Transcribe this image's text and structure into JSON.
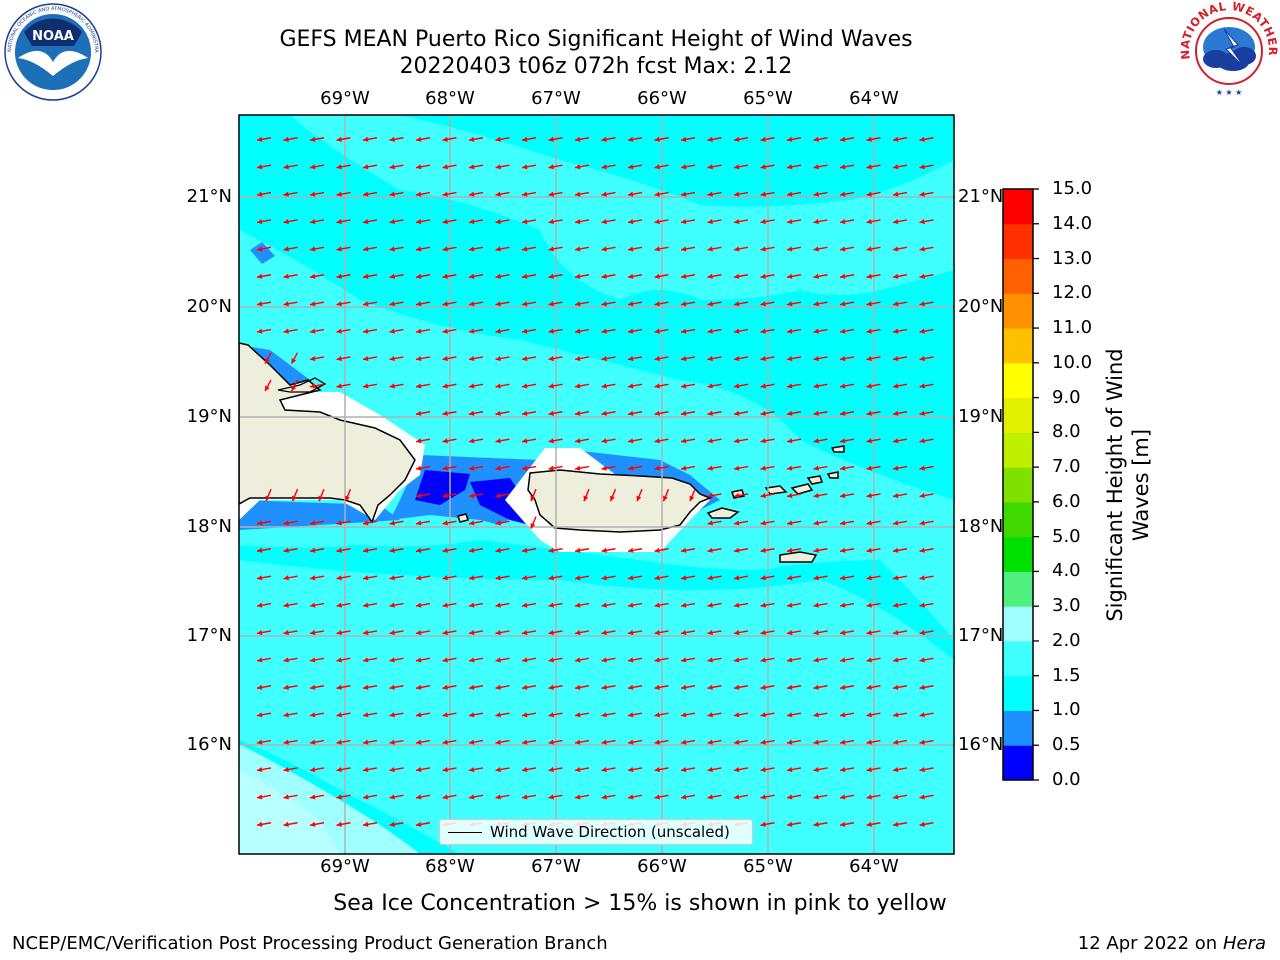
{
  "header": {
    "title_line1": "GEFS MEAN Puerto Rico Significant Height of Wind Waves",
    "title_line2": "20220403 t06z 072h fcst   Max: 2.12"
  },
  "logos": {
    "noaa": {
      "text": "NOAA",
      "ring_text": "NATIONAL OCEANIC AND ATMOSPHERIC ADMINISTRATION · U.S. DEPARTMENT OF COMMERCE",
      "icon": "noaa-seagull-logo"
    },
    "nws": {
      "ring_text": "NATIONAL WEATHER SERVICE",
      "icon": "nws-cloud-lightning-logo"
    }
  },
  "map": {
    "lon_labels": [
      "69°W",
      "68°W",
      "67°W",
      "66°W",
      "65°W",
      "64°W"
    ],
    "lat_labels": [
      "21°N",
      "20°N",
      "19°N",
      "18°N",
      "17°N",
      "16°N"
    ],
    "grid": true,
    "arrow_direction": "toward west / west-southwest",
    "colors": {
      "ocean": "#00ffff",
      "land": "#eeeedc",
      "arrow": "#ff0000",
      "grid": "#b0b0b0"
    }
  },
  "legend": {
    "label": "Wind Wave Direction (unscaled)",
    "placement": "lower-center"
  },
  "colorbar": {
    "label": "Significant Height of Wind Waves [m]",
    "ticks": [
      "0.0",
      "0.5",
      "1.0",
      "1.5",
      "2.0",
      "3.0",
      "4.0",
      "5.0",
      "6.0",
      "7.0",
      "8.0",
      "9.0",
      "10.0",
      "11.0",
      "12.0",
      "13.0",
      "14.0",
      "15.0"
    ],
    "colors": [
      "#0000ff",
      "#1e90ff",
      "#00ffff",
      "#40ffff",
      "#a0ffff",
      "#50f080",
      "#00e000",
      "#40d800",
      "#80e000",
      "#c0f000",
      "#e0f000",
      "#ffff00",
      "#ffc000",
      "#ff9000",
      "#ff6000",
      "#ff3000",
      "#ff0000"
    ]
  },
  "note": "Sea Ice Concentration > 15% is shown in pink to yellow",
  "footer": {
    "left": "NCEP/EMC/Verification Post Processing Product Generation Branch",
    "right_prefix": "12 Apr 2022 on ",
    "right_host": "Hera"
  }
}
